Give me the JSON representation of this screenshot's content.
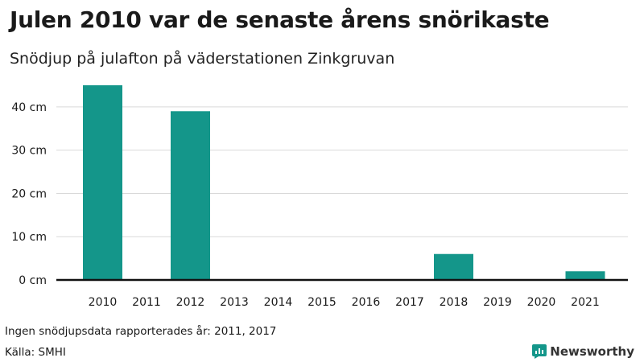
{
  "title": "Julen 2010 var de senaste årens snörikaste",
  "subtitle": "Snödjup på julafton på väderstationen Zinkgruvan",
  "note": "Ingen snödjupsdata rapporterades år: 2011, 2017",
  "source": "Källa: SMHI",
  "brand": {
    "name": "Newsworthy",
    "icon": "newsworthy-logo-icon"
  },
  "colors": {
    "bar": "#14968a",
    "grid": "#d9d9d9",
    "axis": "#111111",
    "text": "#1a1a1a"
  },
  "chart_data": {
    "type": "bar",
    "categories": [
      "2010",
      "2011",
      "2012",
      "2013",
      "2014",
      "2015",
      "2016",
      "2017",
      "2018",
      "2019",
      "2020",
      "2021"
    ],
    "values": [
      45,
      null,
      39,
      0,
      0,
      0,
      0,
      null,
      6,
      0,
      0,
      2
    ],
    "ylim": [
      0,
      45
    ],
    "yticks": [
      0,
      10,
      20,
      30,
      40
    ],
    "ytick_labels": [
      "0 cm",
      "10 cm",
      "20 cm",
      "30 cm",
      "40 cm"
    ],
    "grid": true,
    "xlabel": "",
    "ylabel": ""
  }
}
